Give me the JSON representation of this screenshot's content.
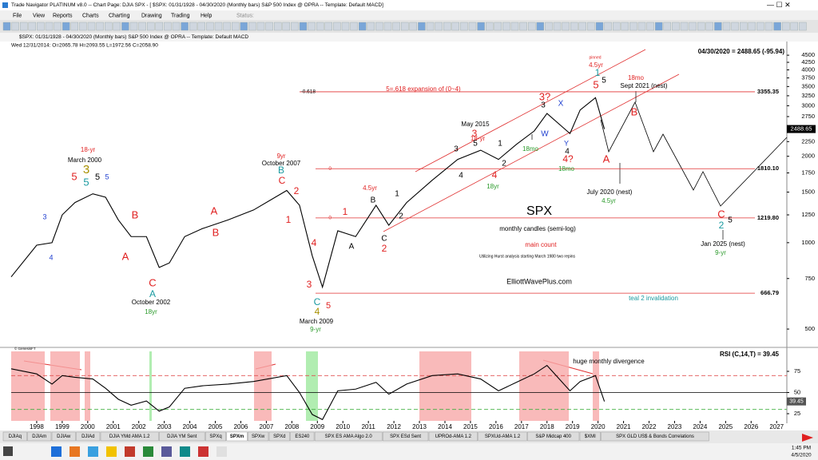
{
  "window": {
    "title": "Trade Navigator PLATINUM v8.0 -- Chart Page: DJIA SPX - [ $SPX: 01/31/1928 - 04/30/2020 (Monthly bars)   S&P 500 Index @ OPRA  --  Template: Default MACD]",
    "menu": [
      "File",
      "View",
      "Reports",
      "Charts",
      "Charting",
      "Drawing",
      "Trading",
      "Help"
    ],
    "status": "Status:"
  },
  "chart_header": {
    "symbol_line": "$SPX: 01/31/1928 - 04/30/2020 (Monthly bars)   S&P 500 Index @ OPRA  --  Template: Default MACD",
    "ohlc_line": "Wed 12/31/2014:  O=2065.78  H=2093.55  L=1972.56  C=2058.90",
    "last_line": "04/30/2020 = 2488.65 (-95.94)",
    "copyright": "© GenesisFT"
  },
  "chart_data": [
    {
      "type": "line",
      "title": "SPX",
      "log_scale": true,
      "grid": false,
      "xlim": [
        1997.0,
        2027.4
      ],
      "ylim": [
        440,
        4710
      ],
      "yticks": [
        500,
        750,
        1000,
        1250,
        1500,
        1750,
        2000,
        2250,
        2500,
        2750,
        3000,
        3250,
        3500,
        3750,
        4000,
        4250,
        4500
      ],
      "x": [
        1997.0,
        1998.0,
        1998.6,
        1999.0,
        1999.5,
        2000.2,
        2000.7,
        2001.2,
        2001.7,
        2002.3,
        2002.8,
        2003.2,
        2003.8,
        2004.5,
        2005.5,
        2006.5,
        2007.8,
        2008.3,
        2008.8,
        2009.2,
        2009.8,
        2010.5,
        2011.3,
        2011.8,
        2012.5,
        2013.5,
        2014.5,
        2015.4,
        2016.1,
        2016.8,
        2017.5,
        2018.0,
        2018.9,
        2019.3,
        2019.9,
        2020.25
      ],
      "series": [
        {
          "color": "#000000",
          "values": [
            760,
            980,
            1000,
            1250,
            1380,
            1480,
            1440,
            1200,
            1050,
            1050,
            820,
            850,
            1050,
            1120,
            1200,
            1300,
            1520,
            1350,
            900,
            700,
            1100,
            1050,
            1350,
            1150,
            1380,
            1650,
            1950,
            2100,
            1950,
            2200,
            2450,
            2820,
            2400,
            2900,
            3200,
            2488.65
          ]
        }
      ],
      "last_value": 2488.65,
      "levels": [
        {
          "value": 3355.35,
          "label": "3355.35",
          "fib": "-0.618"
        },
        {
          "value": 1810.1,
          "label": "1810.10",
          "fib": "0"
        },
        {
          "value": 1219.8,
          "label": "1219.80",
          "fib": "0"
        },
        {
          "value": 666.79,
          "label": "666.79"
        }
      ],
      "annotations": [
        "18-yr",
        "March 2000",
        "5",
        "3",
        "5",
        "5",
        "5",
        "3",
        "4",
        "B",
        "A",
        "C",
        "A",
        "October 2002",
        "18yr",
        "A",
        "B",
        "9yr",
        "October 2007",
        "B",
        "C",
        "2",
        "1",
        "4",
        "3",
        "C",
        "4",
        "5",
        "March 2009",
        "9-yr",
        "1",
        "A",
        "4.5yr",
        "B",
        "1",
        "2",
        "C",
        "2",
        "18-yr",
        "May 2015",
        "3",
        "5",
        "3",
        "4",
        "1",
        "2",
        "4",
        "18yr",
        "5=.618 expansion of (0~4)",
        "3?",
        "3",
        "X",
        "W",
        "18mo",
        "Y",
        "4",
        "4?",
        "18mo",
        "pinned",
        "4.5yr",
        "1",
        "5",
        "5",
        "18mo",
        "Sept 2021 (nest)",
        "B",
        "A",
        "July 2020 (nest)",
        "4.5yr",
        "SPX",
        "monthly candles (semi-log)",
        "main count",
        "Utilizing Hurst analysis starting March 1980 two repins",
        "ElliottWavePlus.com",
        "teal 2 invalidation",
        "C",
        "2",
        "5",
        "Jan 2025 (nest)",
        "9-yr"
      ]
    },
    {
      "type": "line",
      "title": "RSI (C,14,T) = 39.45",
      "grid": false,
      "xlim": [
        1997.0,
        2027.4
      ],
      "ylim": [
        16.5,
        98.6
      ],
      "yticks": [
        25,
        50,
        75
      ],
      "xticks": [
        1998,
        1999,
        2000,
        2001,
        2002,
        2003,
        2004,
        2005,
        2006,
        2007,
        2008,
        2009,
        2010,
        2011,
        2012,
        2013,
        2014,
        2015,
        2016,
        2017,
        2018,
        2019,
        2020,
        2021,
        2022,
        2023,
        2024,
        2025,
        2026,
        2027
      ],
      "x": [
        1997.0,
        1998.0,
        1998.6,
        1999.0,
        1999.5,
        2000.2,
        2000.7,
        2001.2,
        2001.7,
        2002.3,
        2002.8,
        2003.2,
        2003.8,
        2004.5,
        2005.5,
        2006.5,
        2007.8,
        2008.3,
        2008.8,
        2009.2,
        2009.8,
        2010.5,
        2011.3,
        2011.8,
        2012.5,
        2013.5,
        2014.5,
        2015.4,
        2016.1,
        2016.8,
        2017.5,
        2018.0,
        2018.9,
        2019.3,
        2019.9,
        2020.25
      ],
      "series": [
        {
          "color": "#000000",
          "values": [
            78,
            72,
            60,
            70,
            68,
            66,
            55,
            42,
            35,
            40,
            28,
            33,
            55,
            58,
            60,
            63,
            70,
            50,
            24,
            18,
            52,
            54,
            62,
            48,
            60,
            70,
            72,
            66,
            52,
            62,
            72,
            82,
            52,
            63,
            70,
            39.45
          ]
        }
      ],
      "levels": [
        {
          "value": 70,
          "color": "#e05050"
        },
        {
          "value": 50,
          "color": "#000000"
        },
        {
          "value": 30,
          "color": "#40b040"
        }
      ],
      "last_value": 39.45,
      "annotations": [
        "huge monthly divergence"
      ]
    }
  ],
  "tabs": [
    "DJIAq",
    "DJIAm",
    "DJIAw",
    "DJIAd",
    "DJIA YMd AMA 1.2",
    "DJIA YM Sent",
    "SPXq",
    "SPXm",
    "SPXw",
    "SPXd",
    "ES240",
    "SPX ES AMA Algo 2.0",
    "SPX ESd Sent",
    "UPROd-AMA 1.2",
    "SPXUd-AMA 1.2",
    "S&P Midcap 400",
    "$XMI",
    "SPX GLD US$ & Bonds Correlations"
  ],
  "active_tab": 7,
  "taskbar": {
    "time": "1:45 PM",
    "date": "4/5/2020"
  }
}
